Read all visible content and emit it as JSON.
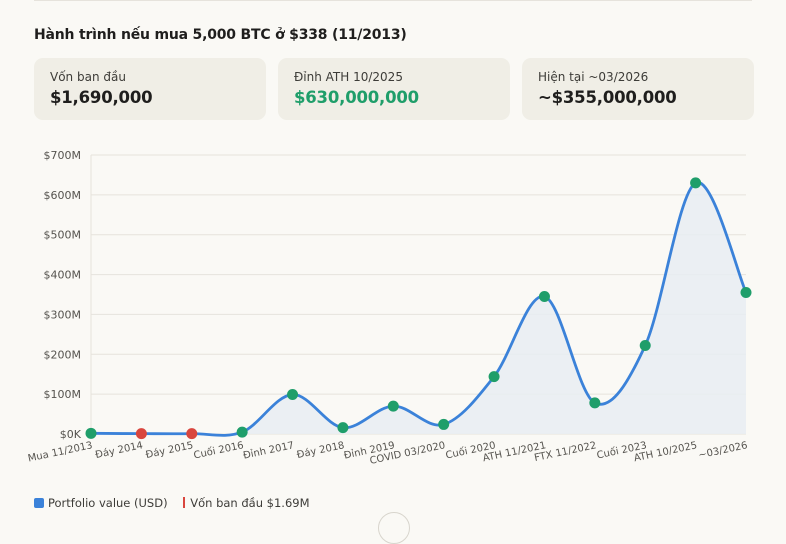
{
  "heading": "Hành trình nếu mua 5,000 BTC ở $338 (11/2013)",
  "cards": [
    {
      "label": "Vốn ban đầu",
      "value": "$1,690,000",
      "highlight": false
    },
    {
      "label": "Đỉnh ATH 10/2025",
      "value": "$630,000,000",
      "highlight": true
    },
    {
      "label": "Hiện tại ~03/2026",
      "value": "~$355,000,000",
      "highlight": false
    }
  ],
  "legend": {
    "series_label": "Portfolio value (USD)",
    "baseline_label": "Vốn ban đầu $1.69M"
  },
  "colors": {
    "line": "#3b82d9",
    "area": "#e7edf2",
    "point_up": "#1f9e6a",
    "point_down": "#d9463e",
    "accent_green": "#1f9e6a"
  },
  "chart_data": {
    "type": "line",
    "title": "",
    "xlabel": "",
    "ylabel": "",
    "ylim": [
      0,
      700
    ],
    "y_unit": "million USD",
    "y_ticks": [
      0,
      100,
      200,
      300,
      400,
      500,
      600,
      700
    ],
    "y_tick_labels": [
      "$0K",
      "$100M",
      "$200M",
      "$300M",
      "$400M",
      "$500M",
      "$600M",
      "$700M"
    ],
    "grid": true,
    "legend_position": "bottom-left",
    "categories": [
      "Mua 11/2013",
      "Đáy 2014",
      "Đáy 2015",
      "Cuối 2016",
      "Đỉnh 2017",
      "Đáy 2018",
      "Đỉnh 2019",
      "COVID 03/2020",
      "Cuối 2020",
      "ATH 11/2021",
      "FTX 11/2022",
      "Cuối 2023",
      "ATH 10/2025",
      "~03/2026"
    ],
    "series": [
      {
        "name": "Portfolio value (USD)",
        "values": [
          1.69,
          0.9,
          0.85,
          4.8,
          99,
          16,
          70,
          24,
          144,
          345,
          78,
          222,
          630,
          355
        ],
        "below_baseline": [
          false,
          true,
          true,
          false,
          false,
          false,
          false,
          false,
          false,
          false,
          false,
          false,
          false,
          false
        ]
      }
    ],
    "baseline": {
      "name": "Vốn ban đầu $1.69M",
      "value": 1.69
    }
  }
}
